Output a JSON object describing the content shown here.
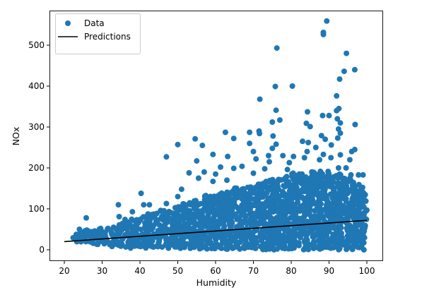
{
  "chart_data": {
    "type": "scatter",
    "title": "",
    "xlabel": "Humidity",
    "ylabel": "NOx",
    "xlim": [
      16,
      104
    ],
    "ylim": [
      -28,
      590
    ],
    "xticks": [
      20,
      30,
      40,
      50,
      60,
      70,
      80,
      90,
      100
    ],
    "yticks": [
      0,
      100,
      200,
      300,
      400,
      500
    ],
    "grid": false,
    "legend": {
      "placement": "top-left",
      "entries": [
        "Data",
        "Predictions"
      ]
    },
    "colors": {
      "data": "#1f77b4",
      "predictions": "#000000"
    },
    "series": [
      {
        "name": "Data",
        "kind": "scatter",
        "dense_cloud_ranges": [
          [
            22,
            18,
            40
          ],
          [
            24,
            15,
            45
          ],
          [
            26,
            14,
            48
          ],
          [
            28,
            12,
            48
          ],
          [
            30,
            10,
            50
          ],
          [
            32,
            8,
            55
          ],
          [
            34,
            6,
            60
          ],
          [
            36,
            4,
            70
          ],
          [
            38,
            4,
            75
          ],
          [
            40,
            2,
            85
          ],
          [
            42,
            2,
            90
          ],
          [
            44,
            2,
            92
          ],
          [
            46,
            2,
            95
          ],
          [
            48,
            2,
            100
          ],
          [
            50,
            2,
            110
          ],
          [
            52,
            2,
            115
          ],
          [
            54,
            2,
            120
          ],
          [
            56,
            1,
            128
          ],
          [
            58,
            1,
            130
          ],
          [
            60,
            1,
            135
          ],
          [
            62,
            1,
            140
          ],
          [
            64,
            1,
            145
          ],
          [
            66,
            1,
            150
          ],
          [
            68,
            1,
            155
          ],
          [
            70,
            0,
            160
          ],
          [
            72,
            0,
            165
          ],
          [
            74,
            0,
            170
          ],
          [
            76,
            0,
            172
          ],
          [
            78,
            0,
            175
          ],
          [
            80,
            0,
            180
          ],
          [
            82,
            0,
            185
          ],
          [
            84,
            0,
            190
          ],
          [
            86,
            0,
            190
          ],
          [
            88,
            0,
            188
          ],
          [
            90,
            0,
            185
          ],
          [
            92,
            0,
            180
          ],
          [
            94,
            0,
            175
          ],
          [
            96,
            0,
            165
          ],
          [
            98,
            0,
            150
          ]
        ],
        "points": [
          [
            25.8,
            78
          ],
          [
            24,
            50
          ],
          [
            26,
            48
          ],
          [
            34.3,
            110
          ],
          [
            34.5,
            81
          ],
          [
            38,
            93
          ],
          [
            40.3,
            138
          ],
          [
            41,
            110
          ],
          [
            42.5,
            110
          ],
          [
            47,
            227
          ],
          [
            47,
            113
          ],
          [
            50,
            257
          ],
          [
            50,
            130
          ],
          [
            51,
            148
          ],
          [
            54.6,
            271
          ],
          [
            56.5,
            255
          ],
          [
            55,
            217
          ],
          [
            53,
            188
          ],
          [
            55.5,
            175
          ],
          [
            57,
            190
          ],
          [
            59.3,
            233
          ],
          [
            59.3,
            167
          ],
          [
            61.3,
            202
          ],
          [
            60,
            185
          ],
          [
            62.6,
            287
          ],
          [
            63.2,
            228
          ],
          [
            63,
            170
          ],
          [
            64.8,
            272
          ],
          [
            64.8,
            199
          ],
          [
            67,
            204
          ],
          [
            69,
            287
          ],
          [
            69,
            260
          ],
          [
            70,
            240
          ],
          [
            70.7,
            222
          ],
          [
            70,
            187
          ],
          [
            71.5,
            290
          ],
          [
            71.6,
            284
          ],
          [
            71.7,
            368
          ],
          [
            73,
            198
          ],
          [
            74,
            230
          ],
          [
            74.2,
            215
          ],
          [
            75,
            312
          ],
          [
            75.2,
            278
          ],
          [
            75.8,
            399
          ],
          [
            76,
            341
          ],
          [
            76.2,
            493
          ],
          [
            76,
            258
          ],
          [
            75,
            248
          ],
          [
            77,
            317
          ],
          [
            77.8,
            230
          ],
          [
            79,
            196
          ],
          [
            80.3,
            400
          ],
          [
            80.6,
            228
          ],
          [
            79.5,
            213
          ],
          [
            80.5,
            187
          ],
          [
            83,
            265
          ],
          [
            83.5,
            225
          ],
          [
            84,
            309
          ],
          [
            84.3,
            337
          ],
          [
            85,
            301
          ],
          [
            84.5,
            262
          ],
          [
            84.2,
            240
          ],
          [
            86.5,
            250
          ],
          [
            87.5,
            220
          ],
          [
            88,
            279
          ],
          [
            88.3,
            328
          ],
          [
            88.5,
            526
          ],
          [
            88.5,
            531
          ],
          [
            89.4,
            559
          ],
          [
            89,
            270
          ],
          [
            88.5,
            233
          ],
          [
            90,
            328
          ],
          [
            90.6,
            256
          ],
          [
            90.5,
            225
          ],
          [
            92,
            340
          ],
          [
            92,
            376
          ],
          [
            92.2,
            320
          ],
          [
            92.6,
            345
          ],
          [
            92.8,
            417
          ],
          [
            93,
            310
          ],
          [
            93,
            285
          ],
          [
            92.5,
            295
          ],
          [
            92.3,
            273
          ],
          [
            93,
            232
          ],
          [
            92.5,
            200
          ],
          [
            94,
            436
          ],
          [
            94.6,
            480
          ],
          [
            94.5,
            200
          ],
          [
            95.5,
            220
          ],
          [
            96.8,
            440
          ],
          [
            96.9,
            306
          ],
          [
            96.8,
            245
          ],
          [
            96,
            240
          ],
          [
            95.8,
            183
          ],
          [
            97.8,
            183
          ],
          [
            99,
            183
          ],
          [
            98.5,
            150
          ]
        ]
      },
      {
        "name": "Predictions",
        "kind": "line",
        "x": [
          20,
          100
        ],
        "y": [
          20,
          72
        ]
      }
    ]
  }
}
